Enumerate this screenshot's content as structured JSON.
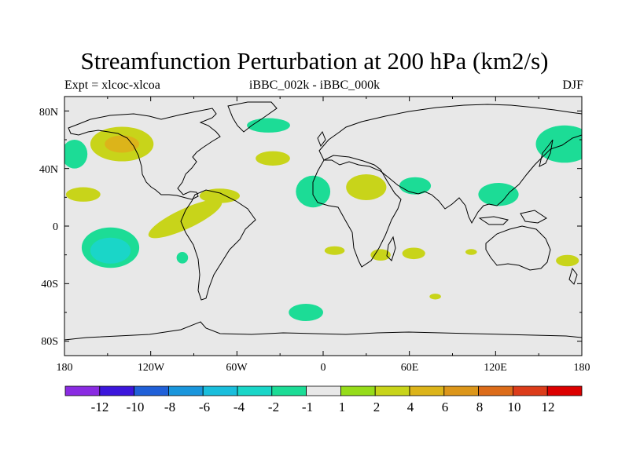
{
  "title": "Streamfunction Perturbation at 200 hPa (km2/s)",
  "subtitle_left": "Expt = xlcoc-xlcoa",
  "subtitle_center": "iBBC_002k - iBBC_000k",
  "subtitle_right": "DJF",
  "lat_labels": [
    "80N",
    "40N",
    "0",
    "40S",
    "80S"
  ],
  "lon_labels": [
    "180",
    "120W",
    "60W",
    "0",
    "60E",
    "120E",
    "180"
  ],
  "colorbar": {
    "colors": [
      "#8a2be2",
      "#3c16dc",
      "#2060d8",
      "#1a96dc",
      "#1abedc",
      "#1ad6c8",
      "#1cdc96",
      "#e8e8e8",
      "#96dc1a",
      "#c8d41a",
      "#dcb41a",
      "#dc961a",
      "#dc6c1a",
      "#dc3c1a",
      "#dc0000"
    ],
    "labels": [
      "-12",
      "-10",
      "-8",
      "-6",
      "-4",
      "-2",
      "-1",
      "1",
      "2",
      "4",
      "6",
      "8",
      "10",
      "12"
    ]
  },
  "chart_data": {
    "type": "heatmap",
    "variable": "Streamfunction Perturbation at 200 hPa",
    "units": "km2/s",
    "season": "DJF",
    "lon_range": [
      -180,
      180
    ],
    "lat_range": [
      -90,
      90
    ],
    "levels": [
      -12,
      -10,
      -8,
      -6,
      -4,
      -2,
      -1,
      1,
      2,
      4,
      6,
      8,
      10,
      12
    ],
    "anomalies": [
      {
        "lon": -140,
        "lat": 57,
        "rx": 22,
        "ry": 12,
        "level": 2
      },
      {
        "lon": -140,
        "lat": 57,
        "rx": 12,
        "ry": 6,
        "level": 4
      },
      {
        "lon": -173,
        "lat": 50,
        "rx": 9,
        "ry": 10,
        "level": -1
      },
      {
        "lon": -38,
        "lat": 70,
        "rx": 15,
        "ry": 5,
        "level": -1
      },
      {
        "lon": -35,
        "lat": 47,
        "rx": 12,
        "ry": 5,
        "level": 2
      },
      {
        "lon": -72,
        "lat": 21,
        "rx": 14,
        "ry": 5,
        "level": 2
      },
      {
        "lon": -96,
        "lat": 5,
        "rx": 28,
        "ry": 7,
        "rot": -25,
        "level": 2
      },
      {
        "lon": -167,
        "lat": 22,
        "rx": 12,
        "ry": 5,
        "level": 2
      },
      {
        "lon": -148,
        "lat": -15,
        "rx": 20,
        "ry": 14,
        "level": -1
      },
      {
        "lon": -148,
        "lat": -17,
        "rx": 14,
        "ry": 9,
        "level": -2
      },
      {
        "lon": -98,
        "lat": -22,
        "rx": 4,
        "ry": 4,
        "level": -1
      },
      {
        "lon": -7,
        "lat": 24,
        "rx": 12,
        "ry": 11,
        "level": -1
      },
      {
        "lon": 30,
        "lat": 27,
        "rx": 14,
        "ry": 9,
        "level": 2
      },
      {
        "lon": 64,
        "lat": 28,
        "rx": 11,
        "ry": 6,
        "level": -1
      },
      {
        "lon": 122,
        "lat": 22,
        "rx": 14,
        "ry": 8,
        "level": -1
      },
      {
        "lon": 168,
        "lat": 57,
        "rx": 20,
        "ry": 13,
        "level": -1
      },
      {
        "lon": 8,
        "lat": -17,
        "rx": 7,
        "ry": 3,
        "level": 2
      },
      {
        "lon": 40,
        "lat": -20,
        "rx": 7,
        "ry": 4,
        "level": 2
      },
      {
        "lon": 63,
        "lat": -19,
        "rx": 8,
        "ry": 4,
        "level": 2
      },
      {
        "lon": 103,
        "lat": -18,
        "rx": 4,
        "ry": 2,
        "level": 2
      },
      {
        "lon": 170,
        "lat": -24,
        "rx": 8,
        "ry": 4,
        "level": 2
      },
      {
        "lon": 78,
        "lat": -49,
        "rx": 4,
        "ry": 2,
        "level": 2
      },
      {
        "lon": -12,
        "lat": -60,
        "rx": 12,
        "ry": 6,
        "level": -1
      }
    ]
  }
}
